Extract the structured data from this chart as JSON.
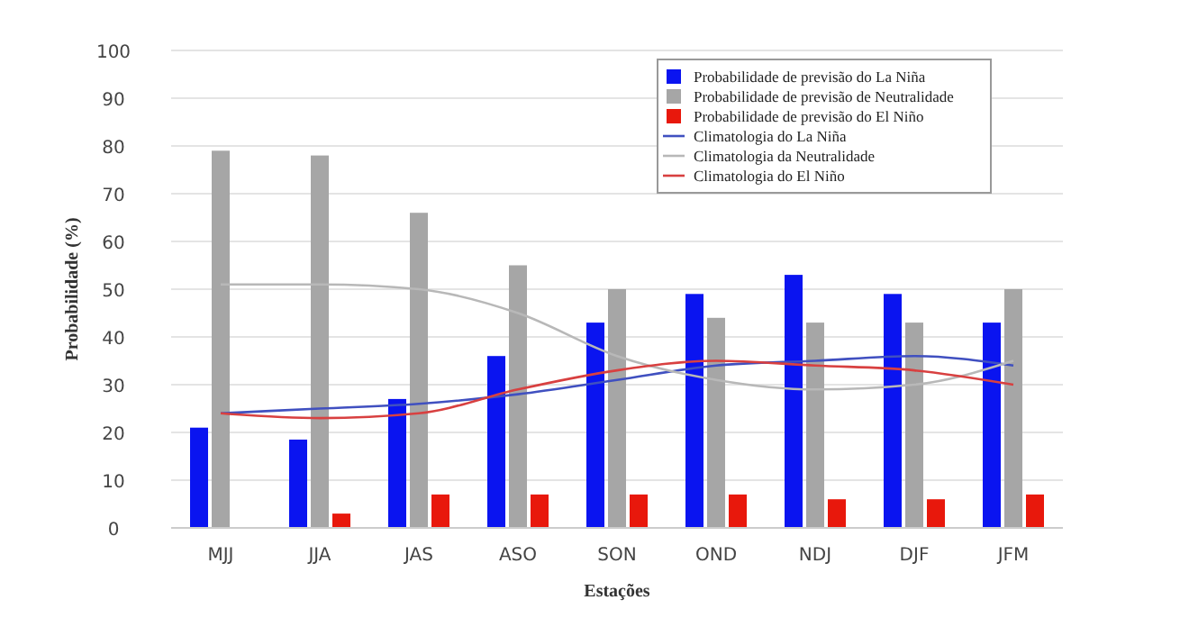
{
  "chart_data": {
    "type": "bar",
    "xlabel": "Estações",
    "ylabel": "Probabilidade (%)",
    "categories": [
      "MJJ",
      "JJA",
      "JAS",
      "ASO",
      "SON",
      "OND",
      "NDJ",
      "DJF",
      "JFM"
    ],
    "ylim": [
      0,
      100
    ],
    "yticks": [
      0,
      10,
      20,
      30,
      40,
      50,
      60,
      70,
      80,
      90,
      100
    ],
    "grid": "y",
    "legend": "top right",
    "series": [
      {
        "name": "Probabilidade de previsão do La Niña",
        "color": "#0a14f0",
        "values": [
          21,
          18.5,
          27,
          36,
          43,
          49,
          53,
          49,
          43
        ]
      },
      {
        "name": "Probabilidade de previsão de Neutralidade",
        "color": "#a6a6a6",
        "values": [
          79,
          78,
          66,
          55,
          50,
          44,
          43,
          43,
          50
        ]
      },
      {
        "name": "Probabilidade de previsão do El Niño",
        "color": "#e8180c",
        "values": [
          0,
          3,
          7,
          7,
          7,
          7,
          6,
          6,
          7
        ]
      },
      {
        "name": "Climatologia do La Niña",
        "type": "line",
        "color": "#4050c0",
        "values": [
          24,
          25,
          26,
          28,
          31,
          34,
          35,
          36,
          34
        ]
      },
      {
        "name": "Climatologia da Neutralidade",
        "type": "line",
        "color": "#b8b8b8",
        "values": [
          51,
          51,
          50,
          45,
          36,
          31,
          29,
          30,
          35
        ]
      },
      {
        "name": "Climatologia do El Niño",
        "type": "line",
        "color": "#d84040",
        "values": [
          24,
          23,
          24,
          29,
          33,
          35,
          34,
          33,
          30
        ]
      }
    ]
  }
}
